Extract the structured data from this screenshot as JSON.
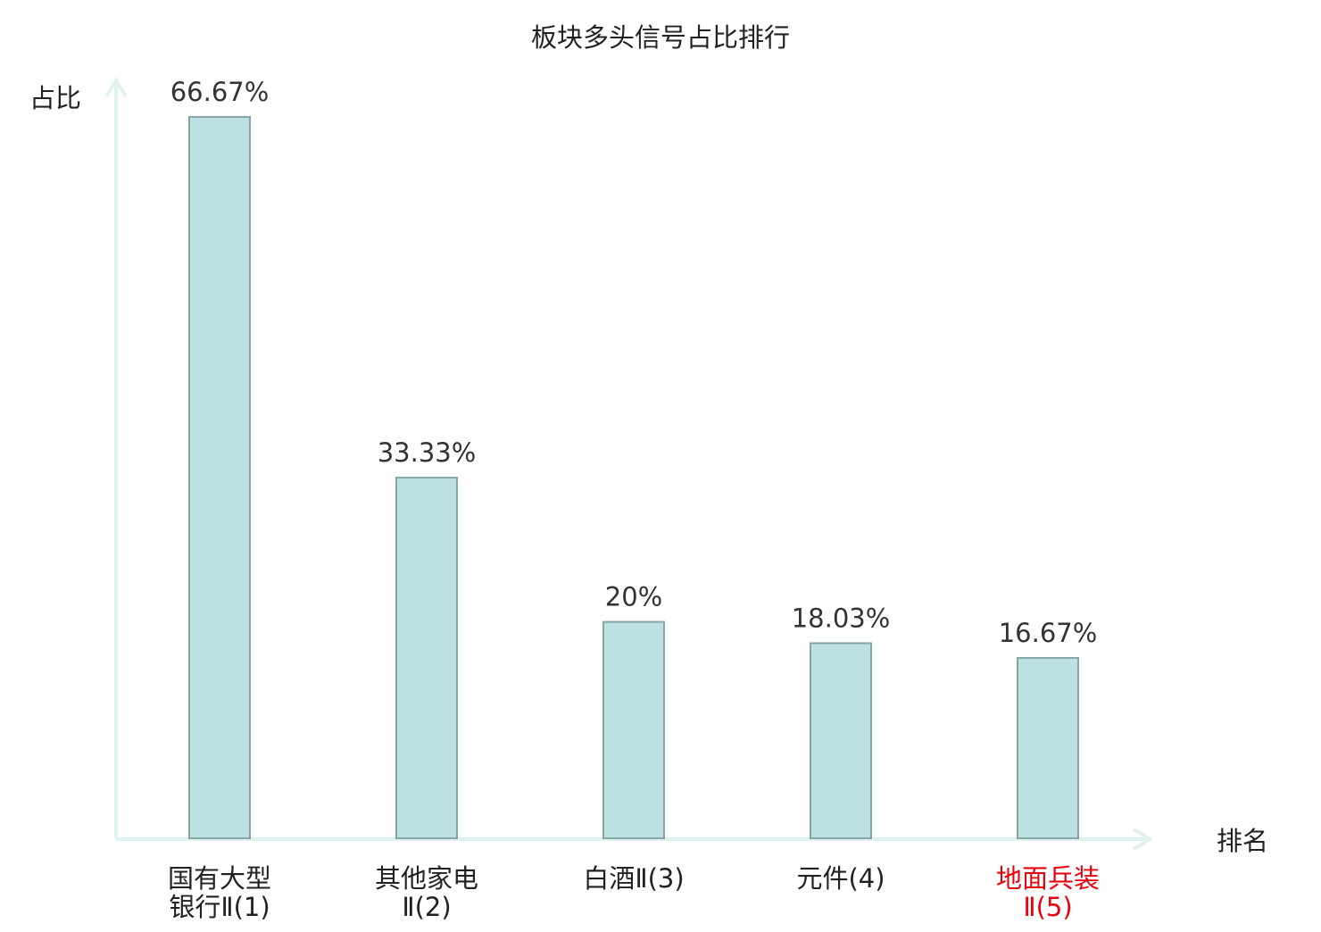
{
  "chart_data": {
    "type": "bar",
    "title": "板块多头信号占比排行",
    "ylabel": "占比",
    "xlabel": "排名",
    "categories": [
      {
        "lines": [
          "国有大型",
          "银行Ⅱ(1)"
        ],
        "highlight": false
      },
      {
        "lines": [
          "其他家电",
          "Ⅱ(2)"
        ],
        "highlight": false
      },
      {
        "lines": [
          "白酒Ⅱ(3)"
        ],
        "highlight": false
      },
      {
        "lines": [
          "元件(4)"
        ],
        "highlight": false
      },
      {
        "lines": [
          "地面兵装",
          "Ⅱ(5)"
        ],
        "highlight": true
      }
    ],
    "values": [
      66.67,
      33.33,
      20,
      18.03,
      16.67
    ],
    "value_labels": [
      "66.67%",
      "33.33%",
      "20%",
      "18.03%",
      "16.67%"
    ],
    "ylim": [
      0,
      66.67
    ],
    "grid": false,
    "colors": {
      "bar_fill": "#bde0e2",
      "bar_stroke": "#86a5a6",
      "axis": "#dff2ef",
      "text": "#222222",
      "value_label": "#333333",
      "highlight": "#e8000b"
    }
  }
}
